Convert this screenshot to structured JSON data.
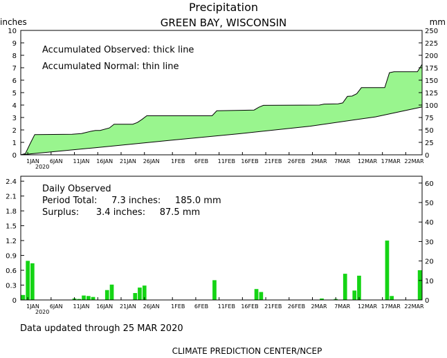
{
  "header": {
    "title": "Precipitation",
    "location": "GREEN BAY, WISCONSIN"
  },
  "units": {
    "left": "inches",
    "right": "mm"
  },
  "top_panel": {
    "legend_observed": "Accumulated Observed: thick line",
    "legend_normal": "Accumulated Normal: thin line"
  },
  "bottom_panel": {
    "heading": "Daily Observed",
    "period_total": "Period Total:     7.3 inches:     185.0 mm",
    "surplus": "Surplus:      3.4 inches:     87.5 mm"
  },
  "x_tick_labels": [
    "1JAN",
    "6JAN",
    "11JAN",
    "16JAN",
    "21JAN",
    "26JAN",
    "1FEB",
    "6FEB",
    "11FEB",
    "16FEB",
    "21FEB",
    "26FEB",
    "2MAR",
    "7MAR",
    "12MAR",
    "17MAR",
    "22MAR"
  ],
  "x_year_label": "2020",
  "footer": {
    "updated": "Data updated through 25 MAR 2020",
    "credit": "CLIMATE PREDICTION CENTER/NCEP"
  },
  "colors": {
    "fill": "#99f58e",
    "bar": "#15d415",
    "line": "#000000"
  },
  "chart_data": [
    {
      "type": "area",
      "title": "Precipitation",
      "subtitle": "GREEN BAY, WISCONSIN",
      "x_start": "2019-12-30",
      "x_end": "2020-03-25",
      "ylabel": "inches",
      "y2label": "mm",
      "ylim": [
        0,
        10
      ],
      "y2lim": [
        0,
        250
      ],
      "yticks": [
        0,
        1,
        2,
        3,
        4,
        5,
        6,
        7,
        8,
        9,
        10
      ],
      "y2ticks": [
        0,
        25,
        50,
        75,
        100,
        125,
        150,
        175,
        200,
        225,
        250
      ],
      "series": [
        {
          "name": "Accumulated Observed",
          "points": [
            [
              "2019-12-30",
              0.0
            ],
            [
              "2019-12-31",
              0.1
            ],
            [
              "2020-01-01",
              0.89
            ],
            [
              "2020-01-02",
              1.63
            ],
            [
              "2020-01-10",
              1.65
            ],
            [
              "2020-01-11",
              1.68
            ],
            [
              "2020-01-12",
              1.71
            ],
            [
              "2020-01-13",
              1.8
            ],
            [
              "2020-01-14",
              1.89
            ],
            [
              "2020-01-15",
              1.96
            ],
            [
              "2020-01-16",
              1.96
            ],
            [
              "2020-01-18",
              2.16
            ],
            [
              "2020-01-19",
              2.46
            ],
            [
              "2020-01-23",
              2.46
            ],
            [
              "2020-01-24",
              2.6
            ],
            [
              "2020-01-25",
              2.85
            ],
            [
              "2020-01-26",
              3.14
            ],
            [
              "2020-02-09",
              3.14
            ],
            [
              "2020-02-10",
              3.54
            ],
            [
              "2020-02-18",
              3.6
            ],
            [
              "2020-02-19",
              3.82
            ],
            [
              "2020-02-20",
              3.98
            ],
            [
              "2020-03-03",
              4.0
            ],
            [
              "2020-03-04",
              4.08
            ],
            [
              "2020-03-07",
              4.1
            ],
            [
              "2020-03-08",
              4.17
            ],
            [
              "2020-03-09",
              4.7
            ],
            [
              "2020-03-10",
              4.72
            ],
            [
              "2020-03-11",
              4.91
            ],
            [
              "2020-03-12",
              5.4
            ],
            [
              "2020-03-17",
              5.4
            ],
            [
              "2020-03-18",
              6.6
            ],
            [
              "2020-03-19",
              6.68
            ],
            [
              "2020-03-24",
              6.68
            ],
            [
              "2020-03-25",
              7.28
            ]
          ]
        },
        {
          "name": "Accumulated Normal",
          "points": [
            [
              "2019-12-30",
              0.0
            ],
            [
              "2020-01-15",
              0.57
            ],
            [
              "2020-02-01",
              1.2
            ],
            [
              "2020-02-15",
              1.7
            ],
            [
              "2020-03-01",
              2.3
            ],
            [
              "2020-03-15",
              3.05
            ],
            [
              "2020-03-25",
              3.85
            ]
          ]
        }
      ]
    },
    {
      "type": "bar",
      "title": "Daily Observed",
      "ylabel": "inches",
      "y2label": "mm",
      "ylim": [
        0,
        2.5
      ],
      "y2lim": [
        0,
        63.5
      ],
      "yticks": [
        0,
        0.3,
        0.6,
        0.9,
        1.2,
        1.5,
        1.8,
        2.1,
        2.4
      ],
      "y2ticks": [
        0,
        10,
        20,
        30,
        40,
        50,
        60
      ],
      "values": [
        [
          "2019-12-31",
          0.1
        ],
        [
          "2020-01-01",
          0.79
        ],
        [
          "2020-01-02",
          0.74
        ],
        [
          "2020-01-11",
          0.03
        ],
        [
          "2020-01-12",
          0.02
        ],
        [
          "2020-01-13",
          0.09
        ],
        [
          "2020-01-14",
          0.08
        ],
        [
          "2020-01-15",
          0.06
        ],
        [
          "2020-01-18",
          0.2
        ],
        [
          "2020-01-19",
          0.31
        ],
        [
          "2020-01-24",
          0.14
        ],
        [
          "2020-01-25",
          0.25
        ],
        [
          "2020-01-26",
          0.29
        ],
        [
          "2020-02-10",
          0.4
        ],
        [
          "2020-02-19",
          0.22
        ],
        [
          "2020-02-20",
          0.16
        ],
        [
          "2020-03-04",
          0.03
        ],
        [
          "2020-03-07",
          0.02
        ],
        [
          "2020-03-09",
          0.53
        ],
        [
          "2020-03-11",
          0.19
        ],
        [
          "2020-03-12",
          0.49
        ],
        [
          "2020-03-18",
          1.2
        ],
        [
          "2020-03-19",
          0.08
        ],
        [
          "2020-03-25",
          0.6
        ]
      ]
    }
  ]
}
